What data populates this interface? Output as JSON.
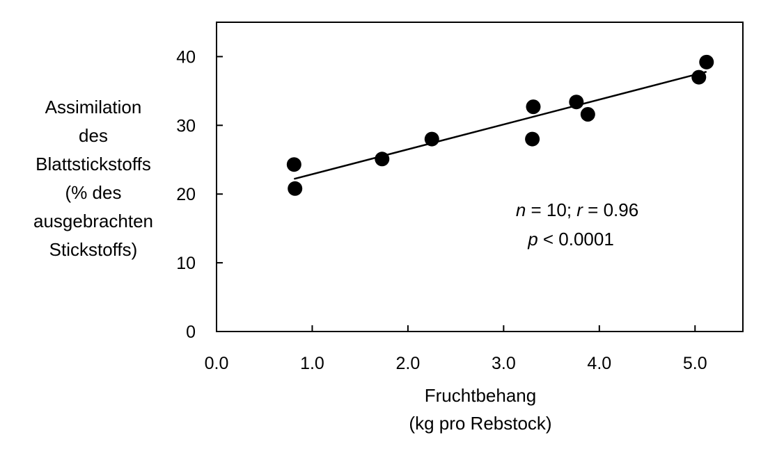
{
  "chart_data": {
    "type": "scatter",
    "xlabel_lines": [
      "Fruchtbehang",
      "(kg pro Rebstock)"
    ],
    "ylabel_lines": [
      "Assimilation",
      "des",
      "Blattstickstoffs",
      "(% des",
      "ausgebrachten",
      "Stickstoffs)"
    ],
    "xlim": [
      0,
      5.5
    ],
    "ylim": [
      0,
      45
    ],
    "xticks": [
      0.0,
      1.0,
      2.0,
      3.0,
      4.0,
      5.0
    ],
    "xtick_labels": [
      "0.0",
      "1.0",
      "2.0",
      "3.0",
      "4.0",
      "5.0"
    ],
    "yticks": [
      0,
      10,
      20,
      30,
      40
    ],
    "ytick_labels": [
      "0",
      "10",
      "20",
      "30",
      "40"
    ],
    "grid": false,
    "series": [
      {
        "points": [
          {
            "x": 0.81,
            "y": 24.3
          },
          {
            "x": 0.82,
            "y": 20.8
          },
          {
            "x": 1.73,
            "y": 25.1
          },
          {
            "x": 2.25,
            "y": 28.0
          },
          {
            "x": 3.31,
            "y": 32.7
          },
          {
            "x": 3.3,
            "y": 28.0
          },
          {
            "x": 3.76,
            "y": 33.4
          },
          {
            "x": 3.88,
            "y": 31.6
          },
          {
            "x": 5.04,
            "y": 37.0
          },
          {
            "x": 5.12,
            "y": 39.2
          }
        ]
      }
    ],
    "trendline": {
      "x": [
        0.81,
        5.12
      ],
      "y": [
        22.2,
        37.8
      ]
    },
    "annotation": {
      "line1": {
        "n_italic": "n",
        "n_rest": " = 10; ",
        "r_italic": "r",
        "r_rest": " = 0.96"
      },
      "line2": {
        "p_italic": "p",
        "p_rest": " < 0.0001"
      }
    }
  }
}
